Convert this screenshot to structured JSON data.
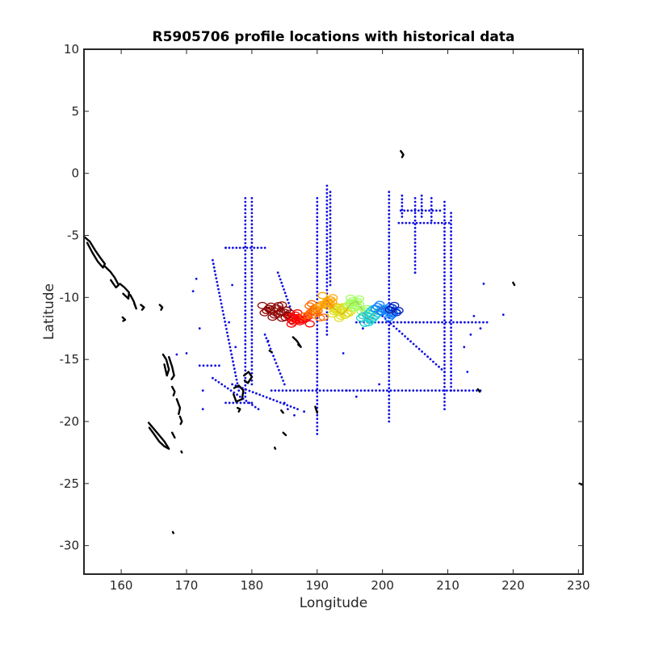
{
  "chart_data": {
    "type": "scatter",
    "title": "R5905706 profile locations with historical data",
    "xlabel": "Longitude",
    "ylabel": "Latitude",
    "xlim": [
      154.3,
      230.7
    ],
    "ylim": [
      -32.3,
      10
    ],
    "x_ticks": [
      160,
      170,
      180,
      190,
      200,
      210,
      220,
      230
    ],
    "y_ticks": [
      10,
      5,
      0,
      -5,
      -10,
      -15,
      -20,
      -25,
      -30
    ],
    "grid": false,
    "legend": "none",
    "colors": {
      "historical": "#1010e0",
      "coastline": "#000000",
      "profile_colormap": [
        "#8b0000",
        "#ff0000",
        "#ff6a00",
        "#ffa500",
        "#e0e020",
        "#a0ff60",
        "#20d0d0",
        "#1080ff",
        "#0020c0"
      ]
    },
    "series": [
      {
        "type": "historical_transects",
        "lines": [
          {
            "x": [
              179,
              179
            ],
            "y": [
              -2,
              -18
            ]
          },
          {
            "x": [
              180,
              180
            ],
            "y": [
              -2,
              -17
            ]
          },
          {
            "x": [
              190,
              190
            ],
            "y": [
              -2,
              -21
            ]
          },
          {
            "x": [
              191.5,
              191.5
            ],
            "y": [
              -1,
              -13
            ]
          },
          {
            "x": [
              192,
              192
            ],
            "y": [
              -1.5,
              -9
            ]
          },
          {
            "x": [
              201,
              201
            ],
            "y": [
              -1.5,
              -20
            ]
          },
          {
            "x": [
              203,
              203
            ],
            "y": [
              -1.8,
              -3.5
            ]
          },
          {
            "x": [
              205,
              205
            ],
            "y": [
              -2,
              -8
            ]
          },
          {
            "x": [
              206,
              206
            ],
            "y": [
              -1.8,
              -3.5
            ]
          },
          {
            "x": [
              207.5,
              207.5
            ],
            "y": [
              -2,
              -3.8
            ]
          },
          {
            "x": [
              209.5,
              209.5
            ],
            "y": [
              -2.3,
              -19
            ]
          },
          {
            "x": [
              210.5,
              210.5
            ],
            "y": [
              -3.2,
              -17.5
            ]
          },
          {
            "x": [
              202.8,
              208.8
            ],
            "y": [
              -3,
              -3
            ]
          },
          {
            "x": [
              202.5,
              210.2
            ],
            "y": [
              -4,
              -4
            ]
          },
          {
            "x": [
              176,
              182
            ],
            "y": [
              -6,
              -6
            ]
          },
          {
            "x": [
              183,
              215
            ],
            "y": [
              -17.5,
              -17.5
            ]
          },
          {
            "x": [
              196,
              216
            ],
            "y": [
              -12,
              -12
            ]
          },
          {
            "x": [
              200,
              209.5
            ],
            "y": [
              -11.5,
              -16
            ]
          },
          {
            "x": [
              174,
              181
            ],
            "y": [
              -16.5,
              -19
            ]
          },
          {
            "x": [
              177,
              187
            ],
            "y": [
              -17,
              -19
            ]
          },
          {
            "x": [
              176,
              180
            ],
            "y": [
              -18.5,
              -18.5
            ]
          },
          {
            "x": [
              172,
              175
            ],
            "y": [
              -15.5,
              -15.5
            ]
          },
          {
            "x": [
              174,
              178
            ],
            "y": [
              -7,
              -17.5
            ]
          },
          {
            "x": [
              184,
              186
            ],
            "y": [
              -8,
              -11
            ]
          },
          {
            "x": [
              182,
              185
            ],
            "y": [
              -13,
              -17
            ]
          }
        ],
        "points": [
          {
            "x": 170,
            "y": -14.5
          },
          {
            "x": 168.5,
            "y": -14.6
          },
          {
            "x": 171.5,
            "y": -8.5
          },
          {
            "x": 171,
            "y": -9.5
          },
          {
            "x": 172,
            "y": -12.5
          },
          {
            "x": 172.5,
            "y": -17.5
          },
          {
            "x": 172.5,
            "y": -19
          },
          {
            "x": 176,
            "y": -6
          },
          {
            "x": 177,
            "y": -9
          },
          {
            "x": 176.5,
            "y": -12
          },
          {
            "x": 177.5,
            "y": -14
          },
          {
            "x": 182.5,
            "y": -13.5
          },
          {
            "x": 185,
            "y": -18.5
          },
          {
            "x": 185.5,
            "y": -19
          },
          {
            "x": 186.5,
            "y": -19.5
          },
          {
            "x": 188,
            "y": -19.2
          },
          {
            "x": 194,
            "y": -14.5
          },
          {
            "x": 194.5,
            "y": -17.5
          },
          {
            "x": 196,
            "y": -18
          },
          {
            "x": 197,
            "y": -12.5
          },
          {
            "x": 199.5,
            "y": -17
          },
          {
            "x": 212,
            "y": -12
          },
          {
            "x": 212.5,
            "y": -14
          },
          {
            "x": 213,
            "y": -16
          },
          {
            "x": 214,
            "y": -11.5
          },
          {
            "x": 215,
            "y": -12.5
          },
          {
            "x": 213.5,
            "y": -13
          },
          {
            "x": 215.5,
            "y": -8.9
          },
          {
            "x": 218.5,
            "y": -11.4
          },
          {
            "x": 205,
            "y": -8
          }
        ]
      },
      {
        "type": "profile_locations",
        "x": [
          182.5,
          183.5,
          184.5,
          185.5,
          186.5,
          187.2,
          188,
          188.8,
          189.5,
          190.2,
          190.8,
          191.5,
          192.2,
          193,
          193.8,
          194.5,
          195.2,
          196,
          196.8,
          197.5,
          198.2,
          199,
          199.8,
          200.5,
          201.2,
          201.8
        ],
        "y": [
          -11.0,
          -11.3,
          -10.9,
          -11.5,
          -11.8,
          -11.6,
          -11.9,
          -11.2,
          -10.8,
          -11.3,
          -10.6,
          -10.2,
          -10.7,
          -11.1,
          -11.4,
          -11.0,
          -10.5,
          -10.3,
          -10.9,
          -11.6,
          -11.8,
          -11.2,
          -10.8,
          -11.0,
          -11.3,
          -11.0
        ]
      }
    ],
    "coastlines": [
      {
        "x": [
          154.3,
          155.2,
          156,
          156.8,
          157.5,
          157.2,
          156.4,
          155.6,
          154.8
        ],
        "y": [
          -5.1,
          -5.5,
          -6.2,
          -6.8,
          -7.3,
          -7.6,
          -7.1,
          -6.4,
          -5.6
        ]
      },
      {
        "x": [
          157.5,
          158.3,
          159,
          159.6,
          159.2,
          158.4
        ],
        "y": [
          -7.5,
          -7.9,
          -8.4,
          -9.0,
          -9.2,
          -8.6
        ]
      },
      {
        "x": [
          159.8,
          160.5,
          161.2,
          161.1,
          160.3
        ],
        "y": [
          -8.9,
          -9.2,
          -9.6,
          -10.1,
          -9.7
        ]
      },
      {
        "x": [
          161.4,
          161.9,
          162.3,
          162.0
        ],
        "y": [
          -9.8,
          -10.3,
          -10.9,
          -10.5
        ]
      },
      {
        "x": [
          163,
          163.5,
          163.2
        ],
        "y": [
          -10.6,
          -10.8,
          -11.0
        ]
      },
      {
        "x": [
          160.2,
          160.6,
          160.3
        ],
        "y": [
          -11.6,
          -11.8,
          -11.9
        ]
      },
      {
        "x": [
          165.9,
          166.3,
          166.1
        ],
        "y": [
          -10.6,
          -10.8,
          -11.0
        ]
      },
      {
        "x": [
          166.4,
          166.9,
          167.3,
          167.0,
          166.6
        ],
        "y": [
          -14.6,
          -15.0,
          -15.8,
          -16.3,
          -15.4
        ]
      },
      {
        "x": [
          167.3,
          167.8,
          168.1,
          167.7
        ],
        "y": [
          -14.8,
          -15.6,
          -16.3,
          -16.6
        ]
      },
      {
        "x": [
          167.8,
          168.2,
          168.0
        ],
        "y": [
          -17.2,
          -17.6,
          -17.9
        ]
      },
      {
        "x": [
          168.5,
          169.0,
          168.8
        ],
        "y": [
          -18.2,
          -18.9,
          -19.4
        ]
      },
      {
        "x": [
          169.0,
          169.3,
          169.1
        ],
        "y": [
          -19.6,
          -20.0,
          -20.2
        ]
      },
      {
        "x": [
          164.2,
          165.0,
          165.8,
          166.6,
          167.3,
          166.6,
          165.8,
          165.0,
          164.3
        ],
        "y": [
          -20.1,
          -20.6,
          -21.1,
          -21.6,
          -22.2,
          -22.0,
          -21.6,
          -21.0,
          -20.5
        ]
      },
      {
        "x": [
          167.8,
          168.2
        ],
        "y": [
          -20.9,
          -21.3
        ]
      },
      {
        "x": [
          169.2,
          169.3
        ],
        "y": [
          -22.4,
          -22.5
        ]
      },
      {
        "x": [
          167.9,
          168.0
        ],
        "y": [
          -28.9,
          -29.0
        ]
      },
      {
        "x": [
          177.3,
          178.0,
          178.7,
          178.5,
          177.6,
          177.2
        ],
        "y": [
          -17.3,
          -17.1,
          -17.5,
          -18.2,
          -18.4,
          -17.8
        ]
      },
      {
        "x": [
          178.8,
          179.5,
          180.0,
          179.4,
          178.9
        ],
        "y": [
          -16.3,
          -16.0,
          -16.4,
          -16.9,
          -16.7
        ]
      },
      {
        "x": [
          177.8,
          178.2,
          178.0
        ],
        "y": [
          -18.9,
          -19.0,
          -19.2
        ]
      },
      {
        "x": [
          186.3,
          186.9,
          187.5,
          187.1
        ],
        "y": [
          -13.2,
          -13.5,
          -14.0,
          -13.8
        ]
      },
      {
        "x": [
          182.7,
          183.0
        ],
        "y": [
          -14.3,
          -14.4
        ]
      },
      {
        "x": [
          184.5,
          184.8
        ],
        "y": [
          -19.1,
          -19.3
        ]
      },
      {
        "x": [
          184.8,
          185.2
        ],
        "y": [
          -20.9,
          -21.1
        ]
      },
      {
        "x": [
          183.5,
          183.6
        ],
        "y": [
          -22.1,
          -22.2
        ]
      },
      {
        "x": [
          189.7,
          190.0
        ],
        "y": [
          -18.8,
          -19.3
        ]
      },
      {
        "x": [
          202.8,
          203.2,
          203.0
        ],
        "y": [
          1.8,
          1.5,
          1.3
        ]
      },
      {
        "x": [
          214.6,
          214.9
        ],
        "y": [
          -17.4,
          -17.6
        ]
      },
      {
        "x": [
          220.0,
          220.2
        ],
        "y": [
          -8.8,
          -9.0
        ]
      },
      {
        "x": [
          230.2,
          230.6
        ],
        "y": [
          -25.0,
          -25.1
        ]
      }
    ]
  }
}
